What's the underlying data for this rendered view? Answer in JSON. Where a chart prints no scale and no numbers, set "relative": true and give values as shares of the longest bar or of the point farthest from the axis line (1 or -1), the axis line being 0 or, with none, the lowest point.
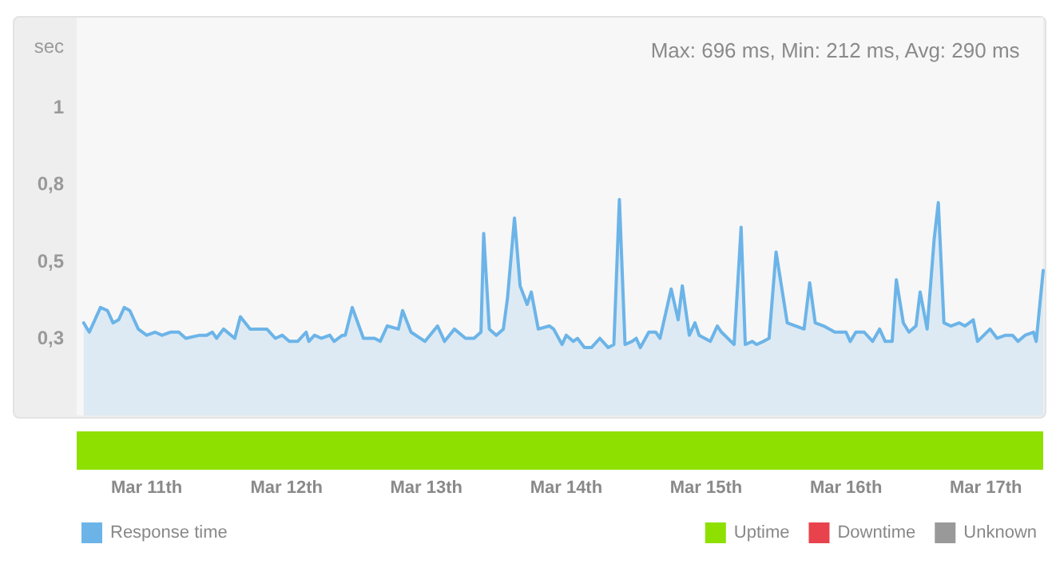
{
  "chart_data": [
    {
      "type": "area",
      "title": "Max: 696 ms, Min: 212 ms, Avg: 290 ms",
      "ylabel": "sec",
      "legend": "bottom left",
      "xlim": [
        "--03-10T12:00",
        "--03-17T09:50"
      ],
      "ylim": [
        0,
        1.29
      ],
      "xticks": [
        {
          "value": "--03-11",
          "label": "Mar 11th"
        },
        {
          "value": "--03-12",
          "label": "Mar 12th"
        },
        {
          "value": "--03-13",
          "label": "Mar 13th"
        },
        {
          "value": "--03-14",
          "label": "Mar 14th"
        },
        {
          "value": "--03-15",
          "label": "Mar 15th"
        },
        {
          "value": "--03-16",
          "label": "Mar 16th"
        },
        {
          "value": "--03-17",
          "label": "Mar 17th"
        }
      ],
      "yticks": [
        {
          "value": 0.25,
          "label": "0,3"
        },
        {
          "value": 0.5,
          "label": "0,5"
        },
        {
          "value": 0.75,
          "label": "0,8"
        },
        1
      ],
      "x": [
        "--03-10T13:12",
        "--03-10T14:10",
        "--03-10T16:05",
        "--03-10T17:17",
        "--03-10T18:14",
        "--03-10T19:12",
        "--03-10T20:10",
        "--03-10T21:07",
        "--03-10T22:34",
        "--03-11T00:00",
        "--03-11T01:26",
        "--03-11T02:38",
        "--03-11T04:05",
        "--03-11T05:31",
        "--03-11T06:43",
        "--03-11T09:07",
        "--03-11T10:19",
        "--03-11T11:17",
        "--03-11T12:00",
        "--03-11T13:12",
        "--03-11T15:07",
        "--03-11T16:05",
        "--03-11T17:46",
        "--03-11T19:26",
        "--03-11T20:38",
        "--03-11T22:05",
        "--03-11T23:17",
        "--03-12T00:29",
        "--03-12T01:55",
        "--03-12T03:22",
        "--03-12T03:50",
        "--03-12T04:48",
        "--03-12T06:00",
        "--03-12T07:26",
        "--03-12T08:10",
        "--03-12T09:36",
        "--03-12T10:05",
        "--03-12T11:17",
        "--03-12T13:12",
        "--03-12T15:07",
        "--03-12T16:05",
        "--03-12T17:17",
        "--03-12T19:12",
        "--03-12T19:55",
        "--03-12T21:22",
        "--03-12T23:46",
        "--03-13T01:55",
        "--03-13T03:07",
        "--03-13T04:48",
        "--03-13T06:43",
        "--03-13T08:10",
        "--03-13T09:22",
        "--03-13T09:50",
        "--03-13T10:48",
        "--03-13T12:00",
        "--03-13T13:12",
        "--03-13T13:55",
        "--03-13T15:07",
        "--03-13T16:05",
        "--03-13T17:17",
        "--03-13T18:00",
        "--03-13T19:12",
        "--03-13T21:07",
        "--03-13T21:50",
        "--03-13T23:17",
        "--03-14T00:00",
        "--03-14T01:12",
        "--03-14T01:55",
        "--03-14T03:07",
        "--03-14T04:19",
        "--03-14T05:46",
        "--03-14T07:12",
        "--03-14T08:10",
        "--03-14T09:07",
        "--03-14T10:05",
        "--03-14T11:17",
        "--03-14T12:00",
        "--03-14T12:43",
        "--03-14T14:10",
        "--03-14T15:22",
        "--03-14T16:05",
        "--03-14T18:00",
        "--03-14T19:12",
        "--03-14T19:55",
        "--03-14T21:07",
        "--03-14T22:05",
        "--03-14T22:48",
        "--03-15T00:43",
        "--03-15T01:55",
        "--03-15T02:38",
        "--03-15T04:48",
        "--03-15T06:00",
        "--03-15T06:43",
        "--03-15T07:55",
        "--03-15T08:38",
        "--03-15T09:50",
        "--03-15T10:48",
        "--03-15T12:00",
        "--03-15T13:55",
        "--03-15T15:22",
        "--03-15T16:48",
        "--03-15T17:46",
        "--03-15T18:43",
        "--03-15T20:10",
        "--03-15T22:05",
        "--03-15T22:48",
        "--03-16T00:00",
        "--03-16T00:43",
        "--03-16T01:41",
        "--03-16T03:07",
        "--03-16T04:34",
        "--03-16T05:46",
        "--03-16T06:43",
        "--03-16T07:55",
        "--03-16T08:38",
        "--03-16T09:50",
        "--03-16T10:48",
        "--03-16T12:00",
        "--03-16T12:43",
        "--03-16T13:55",
        "--03-16T15:07",
        "--03-16T15:50",
        "--03-16T16:48",
        "--03-16T18:00",
        "--03-16T19:26",
        "--03-16T20:24",
        "--03-16T21:50",
        "--03-16T22:34",
        "--03-17T00:43",
        "--03-17T01:55",
        "--03-17T03:22",
        "--03-17T04:34",
        "--03-17T05:31",
        "--03-17T06:43",
        "--03-17T08:10",
        "--03-17T08:38",
        "--03-17T09:50"
      ],
      "series": [
        {
          "name": "Response time",
          "color": "#6cb4e8",
          "values": [
            0.3,
            0.27,
            0.35,
            0.34,
            0.3,
            0.31,
            0.35,
            0.34,
            0.28,
            0.26,
            0.27,
            0.26,
            0.27,
            0.27,
            0.25,
            0.26,
            0.26,
            0.27,
            0.25,
            0.28,
            0.25,
            0.32,
            0.28,
            0.28,
            0.28,
            0.25,
            0.26,
            0.24,
            0.24,
            0.27,
            0.24,
            0.26,
            0.25,
            0.26,
            0.24,
            0.26,
            0.26,
            0.35,
            0.25,
            0.25,
            0.24,
            0.29,
            0.28,
            0.34,
            0.27,
            0.24,
            0.29,
            0.24,
            0.28,
            0.25,
            0.25,
            0.27,
            0.59,
            0.28,
            0.26,
            0.28,
            0.38,
            0.64,
            0.42,
            0.36,
            0.4,
            0.28,
            0.29,
            0.28,
            0.23,
            0.26,
            0.24,
            0.25,
            0.22,
            0.22,
            0.25,
            0.22,
            0.23,
            0.7,
            0.23,
            0.24,
            0.25,
            0.22,
            0.27,
            0.27,
            0.25,
            0.41,
            0.31,
            0.42,
            0.26,
            0.3,
            0.26,
            0.24,
            0.29,
            0.27,
            0.23,
            0.61,
            0.23,
            0.24,
            0.23,
            0.24,
            0.25,
            0.53,
            0.3,
            0.29,
            0.28,
            0.43,
            0.3,
            0.29,
            0.27,
            0.27,
            0.27,
            0.24,
            0.27,
            0.27,
            0.24,
            0.28,
            0.24,
            0.24,
            0.44,
            0.3,
            0.27,
            0.29,
            0.4,
            0.28,
            0.57,
            0.69,
            0.3,
            0.29,
            0.3,
            0.29,
            0.31,
            0.24,
            0.28,
            0.25,
            0.26,
            0.26,
            0.24,
            0.26,
            0.27,
            0.24,
            0.47
          ]
        }
      ]
    },
    {
      "type": "bar",
      "orientation": "horizontal",
      "relative": true,
      "legend": "bottom right",
      "categories": [
        null
      ],
      "series": [
        {
          "name": "Uptime",
          "color": "#8ee000",
          "values": [
            1
          ]
        },
        {
          "name": "Downtime",
          "color": "#e8434c",
          "values": [
            null
          ]
        },
        {
          "name": "Unknown",
          "color": "#999999",
          "values": [
            null
          ]
        }
      ]
    }
  ]
}
